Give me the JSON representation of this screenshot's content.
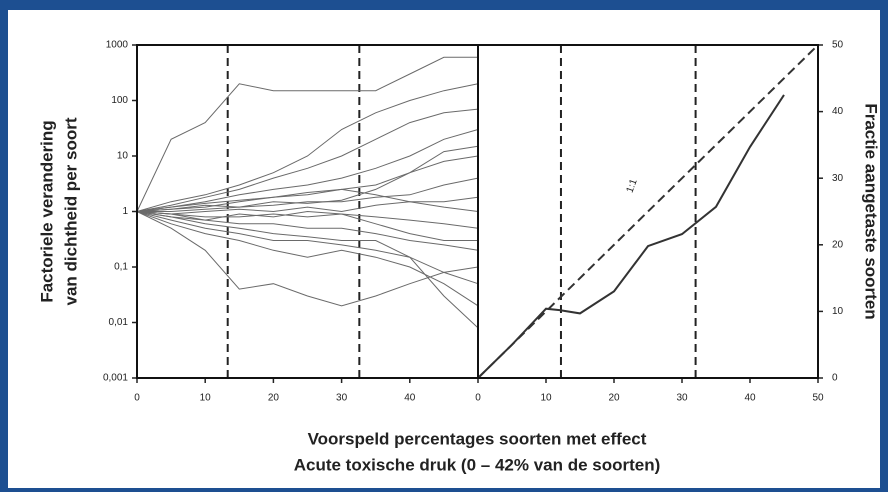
{
  "chart_data": [
    {
      "type": "line",
      "yscale": "log",
      "yaxis_side": "left",
      "color": "#6a6a6a",
      "vline_style": "dashed",
      "ylabel": [
        "Factoriele verandering",
        "van dichtheid per soort"
      ],
      "xlabel": [
        "Voorspeld percentages soorten met effect",
        "Acute toxische druk (0 – 42% van de soorten)"
      ],
      "xlim": [
        0,
        50
      ],
      "xticks": [
        0,
        10,
        20,
        30,
        40
      ],
      "ylim": [
        0.001,
        1000
      ],
      "yticks": [
        {
          "value": 0.001,
          "label": "0,001"
        },
        {
          "value": 0.01,
          "label": "0,01"
        },
        {
          "value": 0.1,
          "label": "0,1"
        },
        1,
        10,
        100,
        1000
      ],
      "vlines": [
        13.3,
        32.6
      ],
      "x": [
        0,
        5,
        10,
        15,
        20,
        25,
        30,
        35,
        40,
        45,
        50
      ],
      "series": [
        {
          "values": [
            1,
            20,
            40,
            200,
            150,
            150,
            150,
            150,
            300,
            600,
            600
          ]
        },
        {
          "values": [
            1,
            0.5,
            0.2,
            0.04,
            0.05,
            0.03,
            0.02,
            0.03,
            0.05,
            0.08,
            0.1
          ]
        },
        {
          "values": [
            1,
            1.5,
            2,
            3,
            5,
            10,
            30,
            60,
            100,
            150,
            200
          ]
        },
        {
          "values": [
            1,
            1.3,
            1.8,
            2.5,
            4,
            6,
            10,
            20,
            40,
            60,
            70
          ]
        },
        {
          "values": [
            1,
            1.2,
            1.5,
            2,
            2.5,
            3,
            4,
            6,
            10,
            20,
            30
          ]
        },
        {
          "values": [
            1,
            1.1,
            1.2,
            1.5,
            1.8,
            2,
            2.5,
            3,
            5,
            8,
            10
          ]
        },
        {
          "values": [
            1,
            1,
            1.1,
            1.2,
            1.3,
            1.5,
            1.5,
            1.8,
            2,
            3,
            4
          ]
        },
        {
          "values": [
            1,
            0.9,
            1,
            1.1,
            1,
            1.2,
            1,
            1.3,
            1.5,
            1.5,
            1.8
          ]
        },
        {
          "values": [
            1,
            0.9,
            0.8,
            0.8,
            0.9,
            0.8,
            0.9,
            0.8,
            0.7,
            0.6,
            0.5
          ]
        },
        {
          "values": [
            1,
            0.8,
            0.7,
            0.6,
            0.6,
            0.5,
            0.5,
            0.4,
            0.3,
            0.25,
            0.2
          ]
        },
        {
          "values": [
            1,
            0.7,
            0.5,
            0.4,
            0.3,
            0.3,
            0.25,
            0.2,
            0.15,
            0.08,
            0.05
          ]
        },
        {
          "values": [
            1,
            0.6,
            0.4,
            0.3,
            0.2,
            0.15,
            0.2,
            0.15,
            0.1,
            0.05,
            0.02
          ]
        },
        {
          "values": [
            1,
            0.8,
            0.6,
            0.5,
            0.4,
            0.35,
            0.3,
            0.3,
            0.15,
            0.03,
            0.008
          ]
        },
        {
          "values": [
            1,
            1.2,
            1.4,
            1.6,
            1.8,
            2.2,
            2.5,
            2,
            1.5,
            1.2,
            1
          ]
        },
        {
          "values": [
            1,
            1.1,
            1.3,
            1.2,
            1.5,
            1.4,
            1.6,
            2.5,
            5,
            12,
            15
          ]
        },
        {
          "values": [
            1,
            0.9,
            0.7,
            0.9,
            0.8,
            1,
            0.9,
            0.6,
            0.4,
            0.3,
            0.3
          ]
        }
      ]
    },
    {
      "type": "line",
      "yscale": "linear",
      "yaxis_side": "right",
      "vline_style": "dashed",
      "ylabel": [
        "Fractie aangetaste soorten"
      ],
      "annotation": "1:1",
      "xlim": [
        0,
        50
      ],
      "xticks": [
        0,
        10,
        20,
        30,
        40,
        50
      ],
      "ylim": [
        0,
        50
      ],
      "yticks": [
        0,
        10,
        20,
        30,
        40,
        50
      ],
      "vlines": [
        12.2,
        32
      ],
      "series": [
        {
          "color": "#333333",
          "style": "dashed",
          "x": [
            0,
            50
          ],
          "values": [
            0,
            50
          ]
        },
        {
          "color": "#333333",
          "style": "solid",
          "x": [
            0,
            5,
            10,
            12,
            15,
            20,
            25,
            30,
            35,
            40,
            45
          ],
          "values": [
            0,
            5,
            10.4,
            10.2,
            9.7,
            13,
            19.8,
            21.6,
            25.7,
            34.7,
            42.5
          ]
        }
      ]
    }
  ]
}
